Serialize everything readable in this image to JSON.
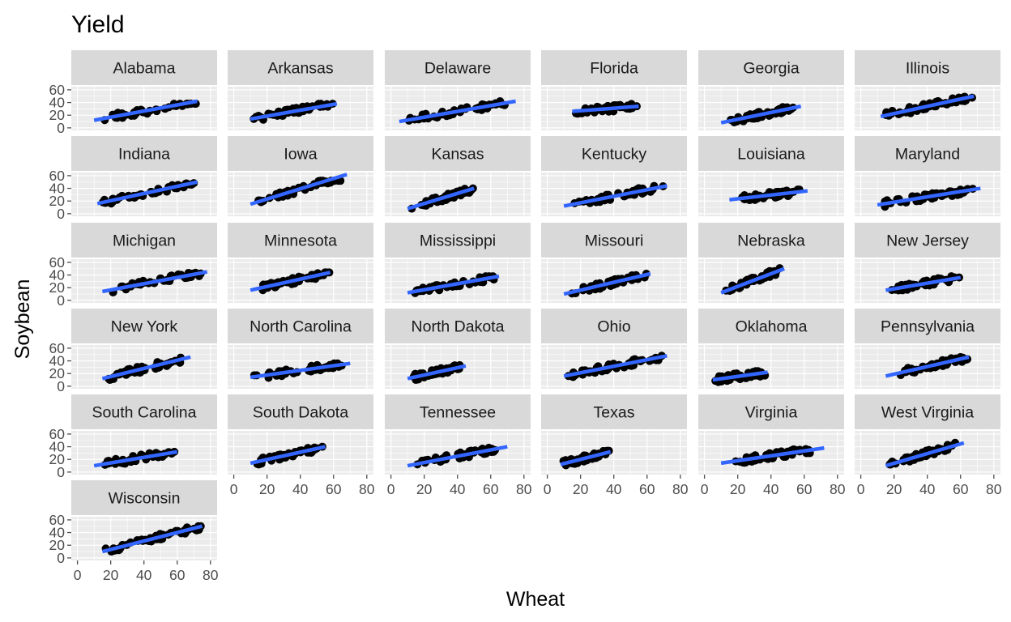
{
  "chart_data": {
    "type": "scatter",
    "title": "Yield",
    "xlabel": "Wheat",
    "ylabel": "Soybean",
    "xlim": [
      0,
      80
    ],
    "ylim": [
      0,
      60
    ],
    "xticks": [
      0,
      20,
      40,
      60,
      80
    ],
    "yticks": [
      0,
      20,
      40,
      60
    ],
    "grid": true,
    "colors": {
      "panel_bg": "#ebebeb",
      "grid": "#ffffff",
      "strip_bg": "#d9d9d9",
      "points": "#000000",
      "fit_line": "#3366ff",
      "ticks": "#4d4d4d"
    },
    "panels": [
      {
        "name": "Alabama",
        "xrange": [
          10,
          75
        ],
        "fit": [
          [
            10,
            12
          ],
          [
            72,
            42
          ]
        ],
        "ylo": 6,
        "yhi": 38
      },
      {
        "name": "Arkansas",
        "xrange": [
          10,
          62
        ],
        "fit": [
          [
            10,
            14
          ],
          [
            62,
            38
          ]
        ],
        "ylo": 10,
        "yhi": 38
      },
      {
        "name": "Delaware",
        "xrange": [
          5,
          75
        ],
        "fit": [
          [
            5,
            10
          ],
          [
            75,
            42
          ]
        ],
        "ylo": 10,
        "yhi": 42
      },
      {
        "name": "Florida",
        "xrange": [
          15,
          55
        ],
        "fit": [
          [
            15,
            26
          ],
          [
            55,
            34
          ]
        ],
        "ylo": 22,
        "yhi": 38
      },
      {
        "name": "Georgia",
        "xrange": [
          10,
          58
        ],
        "fit": [
          [
            10,
            8
          ],
          [
            58,
            34
          ]
        ],
        "ylo": 6,
        "yhi": 34
      },
      {
        "name": "Illinois",
        "xrange": [
          12,
          68
        ],
        "fit": [
          [
            12,
            18
          ],
          [
            68,
            50
          ]
        ],
        "ylo": 16,
        "yhi": 50
      },
      {
        "name": "Indiana",
        "xrange": [
          12,
          72
        ],
        "fit": [
          [
            12,
            16
          ],
          [
            72,
            50
          ]
        ],
        "ylo": 14,
        "yhi": 50
      },
      {
        "name": "Iowa",
        "xrange": [
          10,
          68
        ],
        "fit": [
          [
            10,
            15
          ],
          [
            68,
            62
          ]
        ],
        "ylo": 14,
        "yhi": 52
      },
      {
        "name": "Kansas",
        "xrange": [
          10,
          50
        ],
        "fit": [
          [
            10,
            8
          ],
          [
            50,
            40
          ]
        ],
        "ylo": 8,
        "yhi": 40
      },
      {
        "name": "Kentucky",
        "xrange": [
          10,
          72
        ],
        "fit": [
          [
            10,
            12
          ],
          [
            72,
            44
          ]
        ],
        "ylo": 10,
        "yhi": 44
      },
      {
        "name": "Louisiana",
        "xrange": [
          15,
          62
        ],
        "fit": [
          [
            15,
            22
          ],
          [
            62,
            36
          ]
        ],
        "ylo": 18,
        "yhi": 38
      },
      {
        "name": "Maryland",
        "xrange": [
          10,
          72
        ],
        "fit": [
          [
            10,
            14
          ],
          [
            72,
            40
          ]
        ],
        "ylo": 10,
        "yhi": 40
      },
      {
        "name": "Michigan",
        "xrange": [
          15,
          78
        ],
        "fit": [
          [
            15,
            14
          ],
          [
            78,
            45
          ]
        ],
        "ylo": 12,
        "yhi": 45
      },
      {
        "name": "Minnesota",
        "xrange": [
          10,
          58
        ],
        "fit": [
          [
            10,
            16
          ],
          [
            58,
            44
          ]
        ],
        "ylo": 14,
        "yhi": 44
      },
      {
        "name": "Mississippi",
        "xrange": [
          10,
          65
        ],
        "fit": [
          [
            10,
            12
          ],
          [
            65,
            38
          ]
        ],
        "ylo": 8,
        "yhi": 38
      },
      {
        "name": "Missouri",
        "xrange": [
          10,
          62
        ],
        "fit": [
          [
            10,
            10
          ],
          [
            62,
            42
          ]
        ],
        "ylo": 10,
        "yhi": 42
      },
      {
        "name": "Nebraska",
        "xrange": [
          10,
          48
        ],
        "fit": [
          [
            10,
            12
          ],
          [
            48,
            50
          ]
        ],
        "ylo": 10,
        "yhi": 54
      },
      {
        "name": "New Jersey",
        "xrange": [
          15,
          60
        ],
        "fit": [
          [
            15,
            16
          ],
          [
            60,
            36
          ]
        ],
        "ylo": 14,
        "yhi": 40
      },
      {
        "name": "New York",
        "xrange": [
          15,
          68
        ],
        "fit": [
          [
            15,
            12
          ],
          [
            68,
            46
          ]
        ],
        "ylo": 10,
        "yhi": 48
      },
      {
        "name": "North Carolina",
        "xrange": [
          10,
          70
        ],
        "fit": [
          [
            10,
            14
          ],
          [
            70,
            36
          ]
        ],
        "ylo": 10,
        "yhi": 36
      },
      {
        "name": "North Dakota",
        "xrange": [
          10,
          45
        ],
        "fit": [
          [
            10,
            12
          ],
          [
            45,
            32
          ]
        ],
        "ylo": 10,
        "yhi": 34
      },
      {
        "name": "Ohio",
        "xrange": [
          10,
          72
        ],
        "fit": [
          [
            10,
            16
          ],
          [
            72,
            48
          ]
        ],
        "ylo": 14,
        "yhi": 48
      },
      {
        "name": "Oklahoma",
        "xrange": [
          5,
          38
        ],
        "fit": [
          [
            5,
            10
          ],
          [
            38,
            22
          ]
        ],
        "ylo": 6,
        "yhi": 32
      },
      {
        "name": "Pennsylvania",
        "xrange": [
          15,
          65
        ],
        "fit": [
          [
            15,
            16
          ],
          [
            65,
            46
          ]
        ],
        "ylo": 14,
        "yhi": 46
      },
      {
        "name": "South Carolina",
        "xrange": [
          10,
          60
        ],
        "fit": [
          [
            10,
            10
          ],
          [
            60,
            32
          ]
        ],
        "ylo": 8,
        "yhi": 32
      },
      {
        "name": "South Dakota",
        "xrange": [
          10,
          55
        ],
        "fit": [
          [
            10,
            14
          ],
          [
            55,
            40
          ]
        ],
        "ylo": 12,
        "yhi": 40
      },
      {
        "name": "Tennessee",
        "xrange": [
          10,
          70
        ],
        "fit": [
          [
            10,
            10
          ],
          [
            70,
            40
          ]
        ],
        "ylo": 10,
        "yhi": 42
      },
      {
        "name": "Texas",
        "xrange": [
          8,
          38
        ],
        "fit": [
          [
            8,
            12
          ],
          [
            38,
            32
          ]
        ],
        "ylo": 10,
        "yhi": 36
      },
      {
        "name": "Virginia",
        "xrange": [
          10,
          72
        ],
        "fit": [
          [
            10,
            14
          ],
          [
            72,
            38
          ]
        ],
        "ylo": 10,
        "yhi": 38
      },
      {
        "name": "West Virginia",
        "xrange": [
          15,
          62
        ],
        "fit": [
          [
            15,
            10
          ],
          [
            62,
            46
          ]
        ],
        "ylo": 12,
        "yhi": 48
      },
      {
        "name": "Wisconsin",
        "xrange": [
          15,
          78
        ],
        "fit": [
          [
            15,
            10
          ],
          [
            75,
            50
          ]
        ],
        "ylo": 10,
        "yhi": 50
      }
    ]
  }
}
